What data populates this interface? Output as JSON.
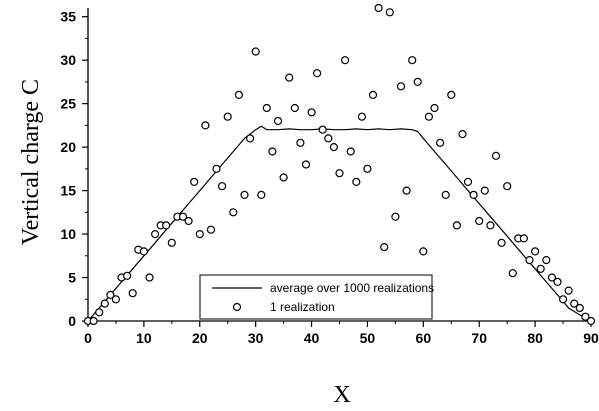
{
  "chart_data": {
    "type": "scatter",
    "xlabel": "X",
    "ylabel": "Vertical charge C",
    "xlim": [
      0,
      90
    ],
    "ylim": [
      0,
      36
    ],
    "xticks": [
      0,
      10,
      20,
      30,
      40,
      50,
      60,
      70,
      80,
      90
    ],
    "yticks": [
      0,
      5,
      10,
      15,
      20,
      25,
      30,
      35
    ],
    "grid": false,
    "legend_position": "bottom-center",
    "series": [
      {
        "name": "average over 1000 realizations",
        "style": "line",
        "x": [
          0,
          2,
          4,
          6,
          8,
          10,
          12,
          14,
          16,
          18,
          20,
          22,
          24,
          26,
          28,
          30,
          31,
          32,
          34,
          36,
          38,
          40,
          42,
          44,
          46,
          48,
          50,
          52,
          54,
          56,
          58,
          59,
          60,
          62,
          64,
          66,
          68,
          70,
          72,
          74,
          76,
          78,
          80,
          82,
          84,
          86,
          88,
          90
        ],
        "y": [
          0,
          1.5,
          3,
          4.5,
          6,
          7.5,
          9,
          10.5,
          12,
          13.5,
          15,
          16.5,
          18,
          19.5,
          21,
          22,
          22.4,
          22,
          22,
          22.1,
          22,
          22,
          22.1,
          22,
          22,
          22.1,
          22,
          22.1,
          22,
          22.1,
          22,
          21.8,
          21,
          19.5,
          18,
          16.5,
          15,
          13.5,
          12,
          10.5,
          9,
          7.5,
          6,
          4.5,
          3,
          1.5,
          0.7,
          0
        ]
      },
      {
        "name": "1 realization",
        "style": "markers",
        "x": [
          0,
          1,
          2,
          3,
          4,
          5,
          6,
          7,
          8,
          9,
          10,
          11,
          12,
          13,
          14,
          15,
          16,
          17,
          18,
          19,
          20,
          21,
          22,
          23,
          24,
          25,
          26,
          27,
          28,
          29,
          30,
          31,
          32,
          33,
          34,
          35,
          36,
          37,
          38,
          39,
          40,
          41,
          42,
          43,
          44,
          45,
          46,
          47,
          48,
          49,
          50,
          51,
          52,
          53,
          54,
          55,
          56,
          57,
          58,
          59,
          60,
          61,
          62,
          63,
          64,
          65,
          66,
          67,
          68,
          69,
          70,
          71,
          72,
          73,
          74,
          75,
          76,
          77,
          78,
          79,
          80,
          81,
          82,
          83,
          84,
          85,
          86,
          87,
          88,
          89,
          90
        ],
        "y": [
          0,
          0,
          1,
          2,
          3,
          2.5,
          5,
          5.2,
          3.2,
          8.2,
          8,
          5,
          10,
          11,
          11,
          9,
          12,
          12,
          11.5,
          16,
          10,
          22.5,
          10.5,
          17.5,
          15.5,
          23.5,
          12.5,
          26,
          14.5,
          21,
          31,
          14.5,
          24.5,
          19.5,
          23,
          16.5,
          28,
          24.5,
          20.5,
          18,
          24,
          28.5,
          22,
          21,
          20,
          17,
          30,
          19.5,
          16,
          23.5,
          17.5,
          26,
          36,
          8.5,
          35.5,
          12,
          27,
          15,
          30,
          27.5,
          8,
          23.5,
          24.5,
          20.5,
          14.5,
          26,
          11,
          21.5,
          16,
          14.5,
          11.5,
          15,
          11,
          19,
          9,
          15.5,
          5.5,
          9.5,
          9.5,
          7,
          8,
          6,
          7,
          5,
          4.5,
          2.5,
          3.5,
          2,
          1.5,
          0.5,
          0
        ]
      }
    ]
  }
}
